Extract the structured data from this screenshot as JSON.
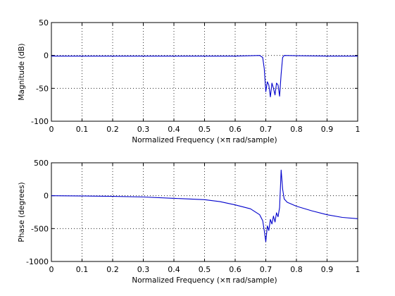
{
  "chart_data": [
    {
      "type": "line",
      "xlabel": "Normalized Frequency  (×π rad/sample)",
      "ylabel": "Magnitude (dB)",
      "xlim": [
        0,
        1
      ],
      "ylim": [
        -100,
        50
      ],
      "xticks": [
        "0",
        "0.1",
        "0.2",
        "0.3",
        "0.4",
        "0.5",
        "0.6",
        "0.7",
        "0.8",
        "0.9",
        "1"
      ],
      "yticks": [
        "50",
        "0",
        "-50",
        "-100"
      ],
      "grid": true,
      "line_color": "#0000cc",
      "series": [
        {
          "x": [
            0,
            0.1,
            0.2,
            0.3,
            0.4,
            0.5,
            0.55,
            0.6,
            0.65,
            0.68,
            0.69,
            0.695,
            0.7,
            0.705,
            0.71,
            0.715,
            0.72,
            0.725,
            0.73,
            0.735,
            0.74,
            0.745,
            0.75,
            0.755,
            0.76,
            0.8,
            0.9,
            1.0
          ],
          "y": [
            -1,
            -1,
            -1,
            -1,
            -1,
            -1,
            -1,
            -1,
            -0.5,
            0,
            -3,
            -20,
            -55,
            -40,
            -45,
            -63,
            -42,
            -50,
            -60,
            -42,
            -45,
            -62,
            -28,
            -3,
            0,
            -0.5,
            -1,
            -1
          ]
        }
      ]
    },
    {
      "type": "line",
      "xlabel": "Normalized Frequency  (×π rad/sample)",
      "ylabel": "Phase (degrees)",
      "xlim": [
        0,
        1
      ],
      "ylim": [
        -1000,
        500
      ],
      "xticks": [
        "0",
        "0.1",
        "0.2",
        "0.3",
        "0.4",
        "0.5",
        "0.6",
        "0.7",
        "0.8",
        "0.9",
        "1"
      ],
      "yticks": [
        "500",
        "0",
        "-500",
        "-1000"
      ],
      "grid": true,
      "line_color": "#0000cc",
      "series": [
        {
          "x": [
            0,
            0.1,
            0.11,
            0.2,
            0.3,
            0.4,
            0.5,
            0.55,
            0.6,
            0.65,
            0.68,
            0.69,
            0.695,
            0.7,
            0.705,
            0.71,
            0.715,
            0.72,
            0.725,
            0.73,
            0.735,
            0.74,
            0.745,
            0.75,
            0.755,
            0.76,
            0.77,
            0.8,
            0.85,
            0.9,
            0.95,
            1.0
          ],
          "y": [
            0,
            -5,
            -5,
            -10,
            -20,
            -40,
            -60,
            -90,
            -140,
            -200,
            -290,
            -380,
            -530,
            -700,
            -460,
            -530,
            -360,
            -430,
            -310,
            -400,
            -260,
            -320,
            -180,
            390,
            100,
            -50,
            -100,
            -160,
            -230,
            -290,
            -330,
            -350
          ]
        }
      ]
    }
  ]
}
